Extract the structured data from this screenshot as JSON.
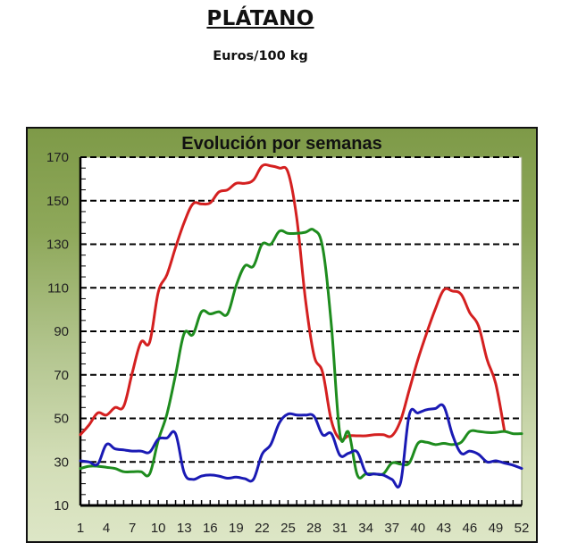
{
  "header": {
    "title": "PLÁTANO",
    "units": "Euros/100 kg"
  },
  "chart_data": {
    "type": "line",
    "title": "Evolución por semanas",
    "xlabel": "",
    "ylabel": "",
    "x": [
      1,
      2,
      3,
      4,
      5,
      6,
      7,
      8,
      9,
      10,
      11,
      12,
      13,
      14,
      15,
      16,
      17,
      18,
      19,
      20,
      21,
      22,
      23,
      24,
      25,
      26,
      27,
      28,
      29,
      30,
      31,
      32,
      33,
      34,
      35,
      36,
      37,
      38,
      39,
      40,
      41,
      42,
      43,
      44,
      45,
      46,
      47,
      48,
      49,
      50,
      51,
      52
    ],
    "x_tick_labels": [
      "1",
      "4",
      "7",
      "10",
      "13",
      "16",
      "19",
      "22",
      "25",
      "28",
      "31",
      "34",
      "37",
      "40",
      "43",
      "46",
      "49",
      "52"
    ],
    "y_tick_labels": [
      "10",
      "30",
      "50",
      "70",
      "90",
      "110",
      "130",
      "150",
      "170"
    ],
    "ylim": [
      10,
      170
    ],
    "xlim": [
      1,
      52
    ],
    "grid": "horizontal dashed every 20",
    "legend": "none",
    "series": [
      {
        "name": "red series",
        "color": "#d42020",
        "values": [
          42.5,
          47,
          52.5,
          51.5,
          55,
          55.5,
          71,
          85,
          85,
          108,
          116,
          128.5,
          140,
          148.5,
          148.5,
          149,
          154,
          155,
          158,
          158,
          159.5,
          166,
          166,
          165,
          163,
          142,
          105,
          79,
          71,
          49,
          40.5,
          42,
          42,
          42,
          42.5,
          42.5,
          42,
          49,
          63,
          77,
          89,
          100,
          109,
          108.5,
          107,
          98.5,
          92.5,
          77,
          66,
          44.5,
          null,
          null
        ]
      },
      {
        "name": "green series",
        "color": "#1e8c1e",
        "values": [
          27,
          28,
          28,
          27.5,
          27,
          25.5,
          25.5,
          25.5,
          24.5,
          40,
          52,
          70,
          89,
          88.5,
          99,
          98,
          99,
          98,
          111,
          120,
          120,
          130,
          130,
          136,
          135,
          135,
          135.5,
          136.5,
          128.5,
          93,
          42.5,
          43.5,
          24,
          24.5,
          24.5,
          24.5,
          29.5,
          29,
          29.5,
          38.5,
          39,
          38,
          38.5,
          38,
          39,
          44,
          44,
          43.5,
          43.5,
          44,
          43,
          43
        ]
      },
      {
        "name": "blue series",
        "color": "#1a1ab4",
        "values": [
          30.5,
          30,
          29,
          38,
          36,
          35.5,
          35,
          35,
          34.5,
          40.5,
          41,
          43,
          25,
          22,
          23.5,
          24,
          23.5,
          22.5,
          23,
          22.3,
          22,
          33.5,
          38,
          48,
          52,
          51.5,
          51.5,
          51,
          42.5,
          43,
          33,
          34,
          34.5,
          25,
          24.5,
          24,
          22,
          20.5,
          51.5,
          52.5,
          54,
          54.5,
          55.5,
          42.5,
          34,
          35,
          33.5,
          30,
          30.5,
          29.5,
          28.5,
          27
        ]
      }
    ]
  }
}
